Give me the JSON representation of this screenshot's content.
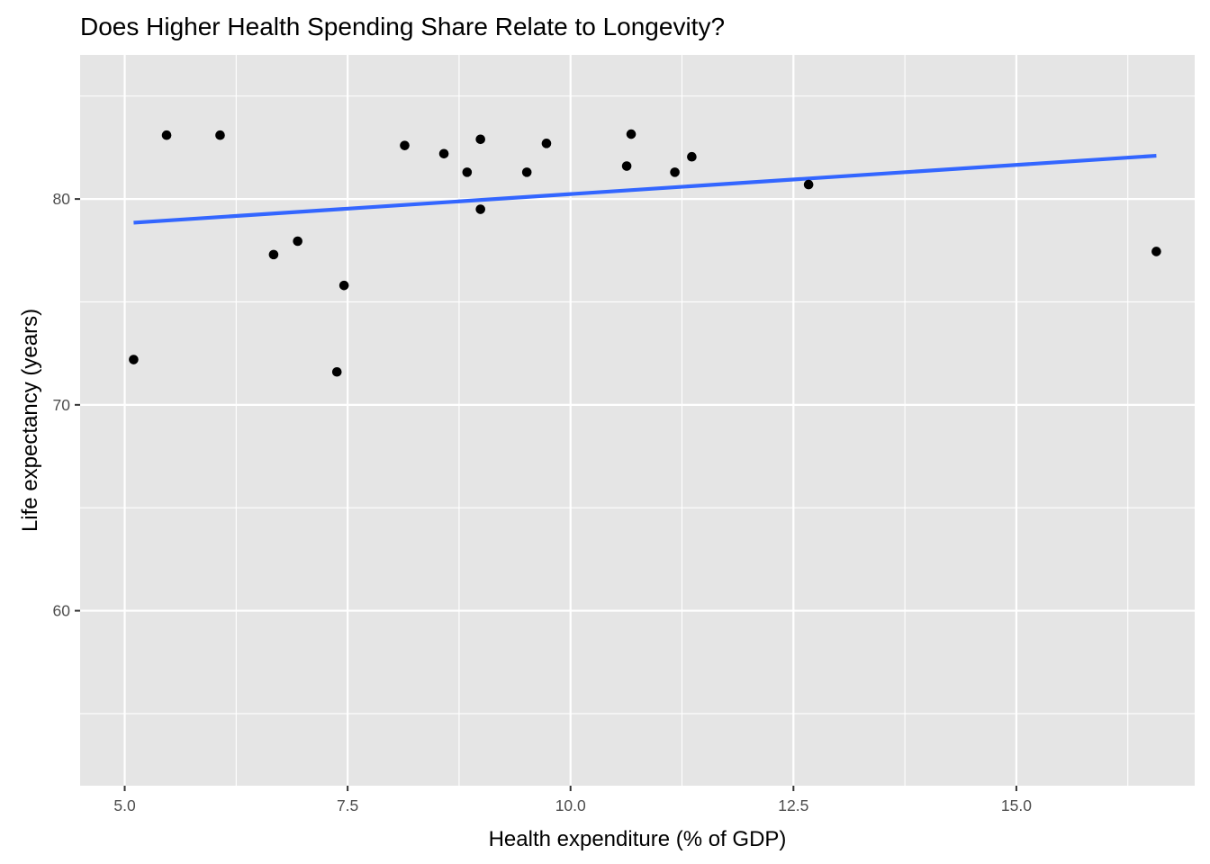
{
  "chart_data": {
    "type": "scatter",
    "title": "Does Higher Health Spending Share Relate to Longevity?",
    "xlabel": "Health expenditure (% of GDP)",
    "ylabel": "Life expectancy (years)",
    "xlim": [
      4.5,
      17.0
    ],
    "ylim": [
      51.5,
      87.0
    ],
    "x_ticks": [
      5.0,
      7.5,
      10.0,
      12.5,
      15.0
    ],
    "x_tick_labels": [
      "5.0",
      "7.5",
      "10.0",
      "12.5",
      "15.0"
    ],
    "y_ticks": [
      60,
      70,
      80
    ],
    "y_tick_labels": [
      "60",
      "70",
      "80"
    ],
    "grid": true,
    "legend": "none",
    "colors": {
      "panel": "#e5e5e5",
      "grid": "#ffffff",
      "point": "#000000",
      "trend": "#3366ff"
    },
    "points": [
      {
        "x": 5.1,
        "y": 72.2
      },
      {
        "x": 5.47,
        "y": 83.1
      },
      {
        "x": 6.07,
        "y": 83.1
      },
      {
        "x": 6.67,
        "y": 77.3
      },
      {
        "x": 6.94,
        "y": 77.95
      },
      {
        "x": 7.38,
        "y": 71.6
      },
      {
        "x": 7.46,
        "y": 75.8
      },
      {
        "x": 8.14,
        "y": 82.6
      },
      {
        "x": 8.58,
        "y": 82.2
      },
      {
        "x": 8.84,
        "y": 81.3
      },
      {
        "x": 8.99,
        "y": 82.9
      },
      {
        "x": 8.99,
        "y": 79.5
      },
      {
        "x": 9.51,
        "y": 81.3
      },
      {
        "x": 9.73,
        "y": 82.7
      },
      {
        "x": 10.63,
        "y": 81.6
      },
      {
        "x": 10.68,
        "y": 83.15
      },
      {
        "x": 11.17,
        "y": 81.3
      },
      {
        "x": 11.36,
        "y": 82.05
      },
      {
        "x": 12.67,
        "y": 80.7
      },
      {
        "x": 16.57,
        "y": 77.45
      }
    ],
    "trend_line": {
      "type": "linear",
      "x": [
        5.1,
        16.57
      ],
      "y": [
        78.85,
        82.1
      ]
    }
  }
}
